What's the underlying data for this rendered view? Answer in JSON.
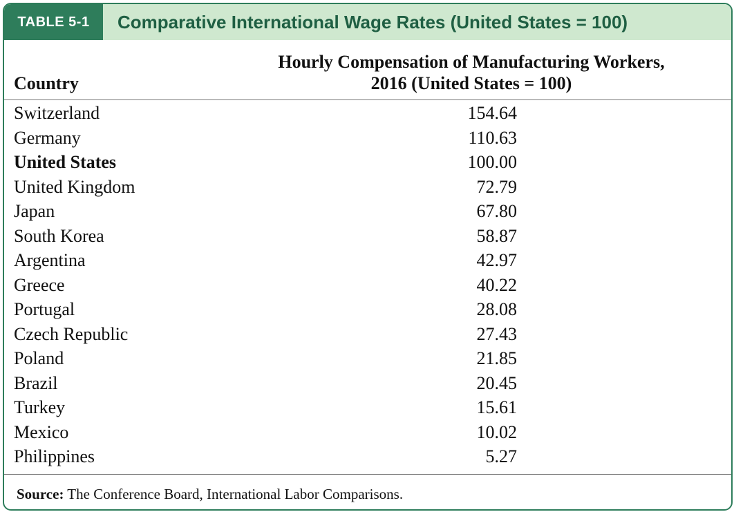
{
  "table": {
    "label": "TABLE 5-1",
    "title": "Comparative International Wage Rates (United States = 100)",
    "columns": {
      "country": "Country",
      "value_line1": "Hourly Compensation of Manufacturing Workers,",
      "value_line2": "2016 (United States = 100)"
    },
    "rows": [
      {
        "country": "Switzerland",
        "value": "154.64"
      },
      {
        "country": "Germany",
        "value": "110.63"
      },
      {
        "country": "United States",
        "value": "100.00"
      },
      {
        "country": "United Kingdom",
        "value": "72.79"
      },
      {
        "country": "Japan",
        "value": "67.80"
      },
      {
        "country": "South Korea",
        "value": "58.87"
      },
      {
        "country": "Argentina",
        "value": "42.97"
      },
      {
        "country": "Greece",
        "value": "40.22"
      },
      {
        "country": "Portugal",
        "value": "28.08"
      },
      {
        "country": "Czech Republic",
        "value": "27.43"
      },
      {
        "country": "Poland",
        "value": "21.85"
      },
      {
        "country": "Brazil",
        "value": "20.45"
      },
      {
        "country": "Turkey",
        "value": "15.61"
      },
      {
        "country": "Mexico",
        "value": "10.02"
      },
      {
        "country": "Philippines",
        "value": "5.27"
      }
    ],
    "source_label": "Source:",
    "source_text": " The Conference Board, International Labor Comparisons."
  },
  "colors": {
    "accent": "#2e7d5b",
    "title_bar": "#cfe8cf",
    "title_text": "#1f5f43"
  }
}
